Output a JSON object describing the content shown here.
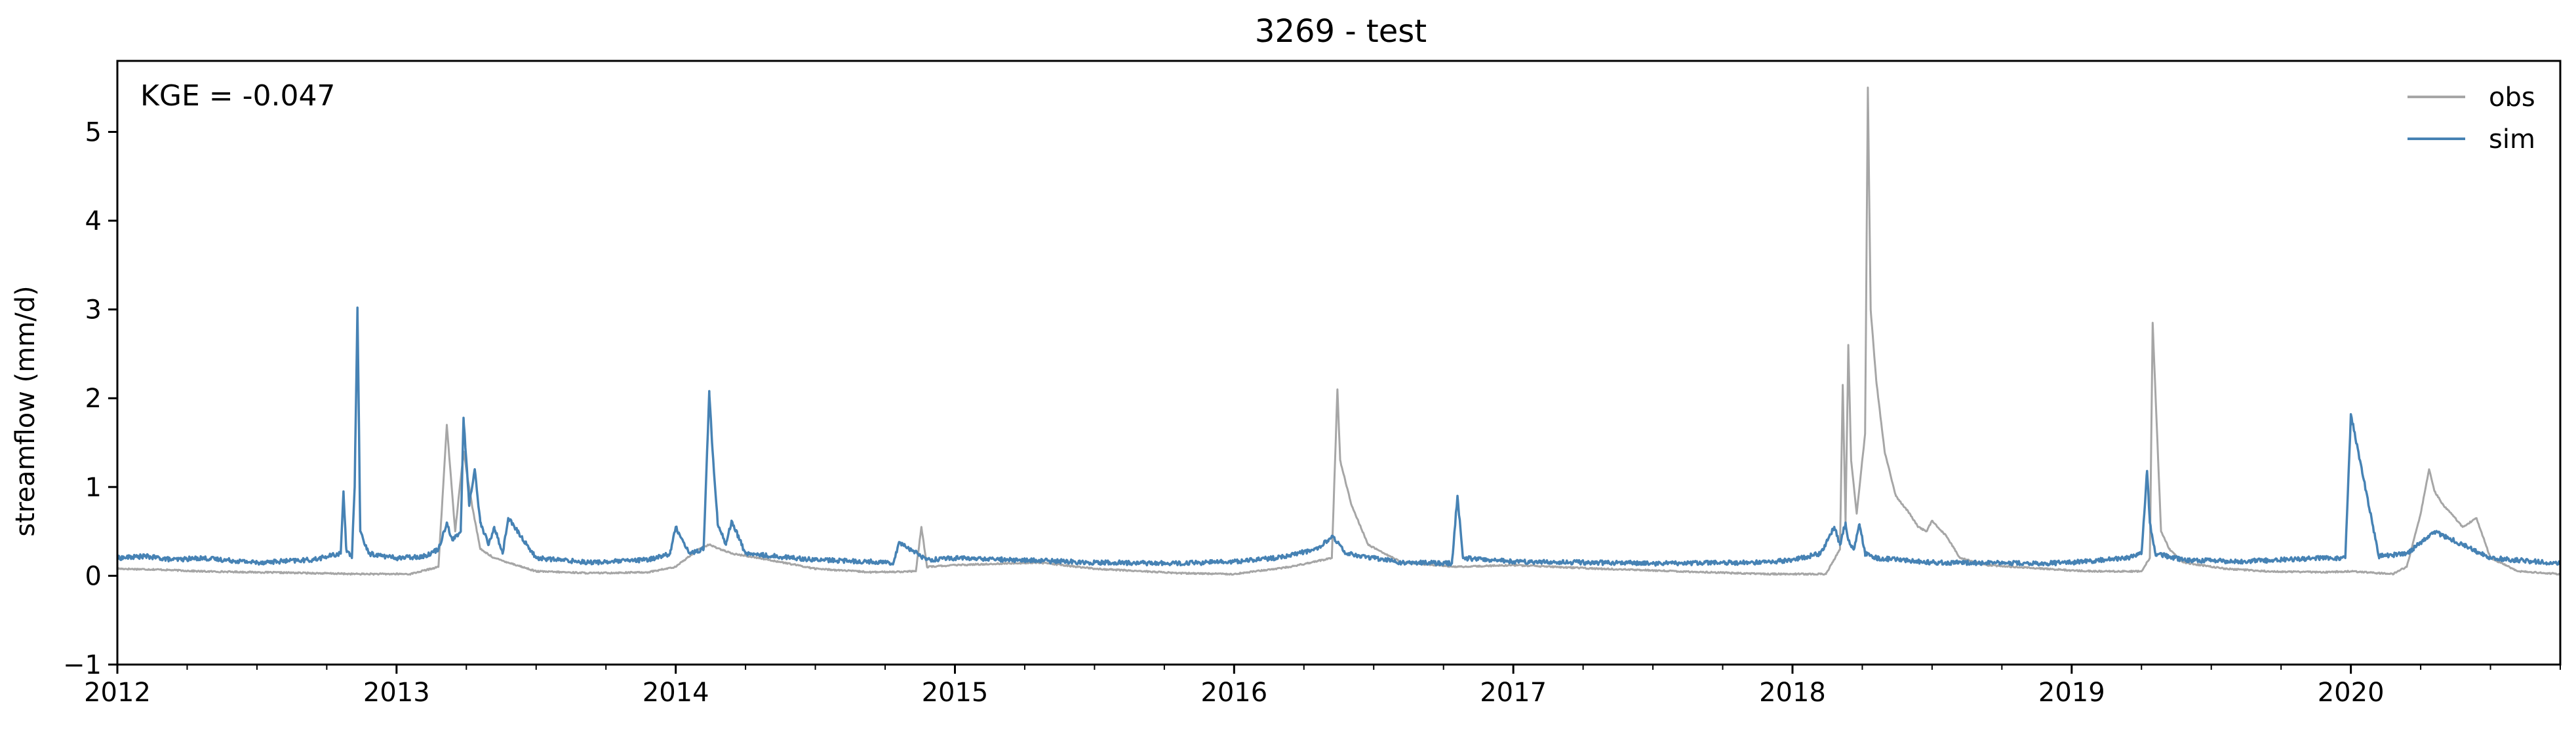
{
  "chart_data": {
    "type": "line",
    "title": "3269 - test",
    "xlabel": "",
    "ylabel": "streamflow (mm/d)",
    "annotation": "KGE = -0.047",
    "xlim": [
      2012.0,
      2020.75
    ],
    "ylim": [
      -1,
      5.8
    ],
    "x_ticks": [
      2012,
      2013,
      2014,
      2015,
      2016,
      2017,
      2018,
      2019,
      2020
    ],
    "x_tick_labels": [
      "2012",
      "2013",
      "2014",
      "2015",
      "2016",
      "2017",
      "2018",
      "2019",
      "2020"
    ],
    "y_ticks": [
      -1,
      0,
      1,
      2,
      3,
      4,
      5
    ],
    "y_tick_labels": [
      "−1",
      "0",
      "1",
      "2",
      "3",
      "4",
      "5"
    ],
    "grid": false,
    "legend_position": "top-right",
    "series": [
      {
        "name": "obs",
        "color": "#a6a6a6",
        "x": [
          2012.0,
          2012.15,
          2012.3,
          2012.5,
          2012.7,
          2012.85,
          2013.05,
          2013.15,
          2013.18,
          2013.21,
          2013.24,
          2013.27,
          2013.3,
          2013.35,
          2013.4,
          2013.5,
          2013.7,
          2013.9,
          2014.0,
          2014.08,
          2014.12,
          2014.2,
          2014.3,
          2014.5,
          2014.7,
          2014.86,
          2014.88,
          2014.9,
          2015.0,
          2015.3,
          2015.5,
          2015.8,
          2016.0,
          2016.2,
          2016.35,
          2016.37,
          2016.38,
          2016.42,
          2016.48,
          2016.6,
          2016.8,
          2017.0,
          2017.3,
          2017.6,
          2017.9,
          2018.0,
          2018.12,
          2018.17,
          2018.18,
          2018.19,
          2018.2,
          2018.21,
          2018.23,
          2018.26,
          2018.27,
          2018.28,
          2018.3,
          2018.33,
          2018.37,
          2018.42,
          2018.45,
          2018.48,
          2018.5,
          2018.55,
          2018.6,
          2018.7,
          2018.9,
          2019.0,
          2019.1,
          2019.25,
          2019.28,
          2019.29,
          2019.32,
          2019.35,
          2019.4,
          2019.55,
          2019.7,
          2019.9,
          2020.0,
          2020.1,
          2020.15,
          2020.2,
          2020.25,
          2020.28,
          2020.3,
          2020.33,
          2020.36,
          2020.4,
          2020.45,
          2020.5,
          2020.6,
          2020.75
        ],
        "y": [
          0.08,
          0.07,
          0.05,
          0.04,
          0.03,
          0.02,
          0.02,
          0.1,
          1.7,
          0.5,
          1.4,
          0.8,
          0.3,
          0.2,
          0.15,
          0.05,
          0.03,
          0.04,
          0.1,
          0.3,
          0.35,
          0.25,
          0.2,
          0.08,
          0.04,
          0.05,
          0.55,
          0.1,
          0.12,
          0.15,
          0.08,
          0.03,
          0.02,
          0.1,
          0.2,
          2.1,
          1.3,
          0.8,
          0.35,
          0.15,
          0.1,
          0.12,
          0.08,
          0.05,
          0.02,
          0.02,
          0.02,
          0.3,
          2.15,
          0.6,
          2.6,
          1.3,
          0.7,
          1.6,
          5.5,
          3.0,
          2.2,
          1.4,
          0.9,
          0.7,
          0.55,
          0.5,
          0.62,
          0.45,
          0.2,
          0.12,
          0.08,
          0.06,
          0.05,
          0.05,
          0.2,
          2.85,
          0.5,
          0.3,
          0.15,
          0.08,
          0.05,
          0.04,
          0.05,
          0.03,
          0.02,
          0.1,
          0.7,
          1.2,
          0.95,
          0.8,
          0.7,
          0.55,
          0.65,
          0.2,
          0.05,
          0.02
        ]
      },
      {
        "name": "sim",
        "color": "#4682b4",
        "x": [
          2012.0,
          2012.1,
          2012.2,
          2012.3,
          2012.5,
          2012.7,
          2012.8,
          2012.81,
          2012.82,
          2012.84,
          2012.85,
          2012.86,
          2012.87,
          2012.9,
          2013.0,
          2013.1,
          2013.15,
          2013.18,
          2013.2,
          2013.23,
          2013.24,
          2013.26,
          2013.28,
          2013.3,
          2013.33,
          2013.35,
          2013.38,
          2013.4,
          2013.5,
          2013.7,
          2013.9,
          2013.98,
          2014.0,
          2014.05,
          2014.1,
          2014.12,
          2014.13,
          2014.15,
          2014.18,
          2014.2,
          2014.25,
          2014.5,
          2014.78,
          2014.8,
          2014.9,
          2015.0,
          2015.2,
          2015.5,
          2015.8,
          2016.0,
          2016.15,
          2016.3,
          2016.35,
          2016.4,
          2016.6,
          2016.78,
          2016.8,
          2016.82,
          2017.0,
          2017.5,
          2017.9,
          2018.0,
          2018.1,
          2018.15,
          2018.17,
          2018.19,
          2018.2,
          2018.22,
          2018.24,
          2018.26,
          2018.3,
          2018.5,
          2018.9,
          2019.0,
          2019.2,
          2019.25,
          2019.27,
          2019.28,
          2019.3,
          2019.4,
          2019.6,
          2019.9,
          2019.98,
          2020.0,
          2020.1,
          2020.2,
          2020.3,
          2020.5,
          2020.7,
          2020.75
        ],
        "y": [
          0.2,
          0.22,
          0.18,
          0.2,
          0.15,
          0.18,
          0.25,
          0.95,
          0.3,
          0.2,
          1.0,
          3.02,
          0.5,
          0.25,
          0.2,
          0.22,
          0.3,
          0.6,
          0.4,
          0.5,
          1.78,
          0.8,
          1.2,
          0.6,
          0.35,
          0.55,
          0.25,
          0.65,
          0.2,
          0.15,
          0.18,
          0.25,
          0.55,
          0.25,
          0.3,
          2.08,
          1.5,
          0.6,
          0.35,
          0.62,
          0.25,
          0.18,
          0.15,
          0.38,
          0.18,
          0.2,
          0.18,
          0.15,
          0.14,
          0.16,
          0.2,
          0.3,
          0.45,
          0.25,
          0.15,
          0.14,
          0.9,
          0.2,
          0.16,
          0.14,
          0.15,
          0.18,
          0.25,
          0.55,
          0.35,
          0.6,
          0.4,
          0.3,
          0.58,
          0.25,
          0.2,
          0.15,
          0.14,
          0.15,
          0.2,
          0.25,
          1.18,
          0.6,
          0.25,
          0.18,
          0.16,
          0.2,
          0.2,
          1.82,
          0.22,
          0.25,
          0.5,
          0.2,
          0.15,
          0.15
        ]
      }
    ]
  }
}
